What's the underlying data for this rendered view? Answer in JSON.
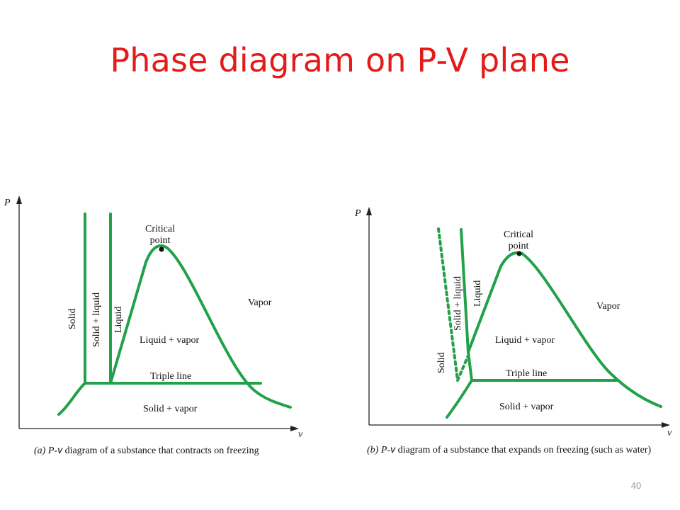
{
  "slide": {
    "title": "Phase diagram on P-V plane",
    "page_number": "40"
  },
  "colors": {
    "title": "#e31b1b",
    "curve": "#22a14a",
    "axis": "#222222",
    "page_number": "#9a9a9a"
  },
  "diagram_a": {
    "axis_y_label": "P",
    "axis_x_label": "v",
    "labels": {
      "solid": "Solid",
      "solid_liquid": "Solid + liquid",
      "liquid": "Liquid",
      "critical_line1": "Critical",
      "critical_line2": "point",
      "vapor": "Vapor",
      "liquid_vapor": "Liquid + vapor",
      "triple_line": "Triple line",
      "solid_vapor": "Solid + vapor"
    },
    "caption_prefix": "(a)",
    "caption_p": "P",
    "caption_dash": "-",
    "caption_v": "v",
    "caption_rest": " diagram of a substance that contracts on freezing"
  },
  "diagram_b": {
    "axis_y_label": "P",
    "axis_x_label": "v",
    "labels": {
      "solid": "Solid",
      "solid_liquid": "Solid + liquid",
      "liquid": "Liquid",
      "critical_line1": "Critical",
      "critical_line2": "point",
      "vapor": "Vapor",
      "liquid_vapor": "Liquid + vapor",
      "triple_line": "Triple line",
      "solid_vapor": "Solid + vapor"
    },
    "caption_prefix": "(b)",
    "caption_p": "P",
    "caption_dash": "-",
    "caption_v": "v",
    "caption_rest": " diagram of a substance that expands on freezing (such as water)"
  }
}
